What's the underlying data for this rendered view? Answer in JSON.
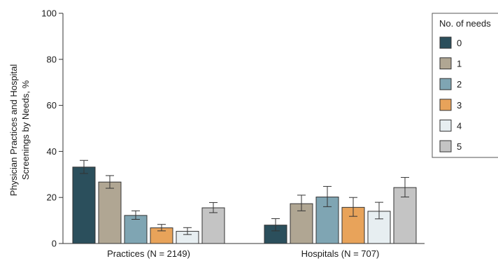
{
  "chart_data": {
    "type": "bar",
    "categories": [
      "Practices (N = 2149)",
      "Hospitals (N = 707)"
    ],
    "ylabel_lines": [
      "Physician Practices and Hospital",
      "Screenings by Needs, %"
    ],
    "xlabel": "",
    "ylim": [
      0,
      100
    ],
    "yticks": [
      0,
      20,
      40,
      60,
      80,
      100
    ],
    "legend_title": "No. of needs",
    "legend_position": "top-right",
    "grid": false,
    "series": [
      {
        "name": "0",
        "color": "#2b4f5c",
        "values": [
          33.2,
          8.0
        ],
        "err_low": [
          30.4,
          5.5
        ],
        "err_high": [
          36.1,
          10.8
        ]
      },
      {
        "name": "1",
        "color": "#b0a693",
        "values": [
          26.7,
          17.3
        ],
        "err_low": [
          24.0,
          14.2
        ],
        "err_high": [
          29.5,
          21.0
        ]
      },
      {
        "name": "2",
        "color": "#7fa5b3",
        "values": [
          12.2,
          20.2
        ],
        "err_low": [
          10.5,
          16.0
        ],
        "err_high": [
          14.2,
          24.8
        ]
      },
      {
        "name": "3",
        "color": "#e8a35a",
        "values": [
          6.8,
          15.7
        ],
        "err_low": [
          5.5,
          11.8
        ],
        "err_high": [
          8.3,
          20.0
        ]
      },
      {
        "name": "4",
        "color": "#e7eef1",
        "values": [
          5.3,
          14.0
        ],
        "err_low": [
          3.9,
          10.7
        ],
        "err_high": [
          6.9,
          17.9
        ]
      },
      {
        "name": "5",
        "color": "#c4c4c4",
        "values": [
          15.5,
          24.3
        ],
        "err_low": [
          13.4,
          20.2
        ],
        "err_high": [
          17.8,
          28.7
        ]
      }
    ]
  }
}
